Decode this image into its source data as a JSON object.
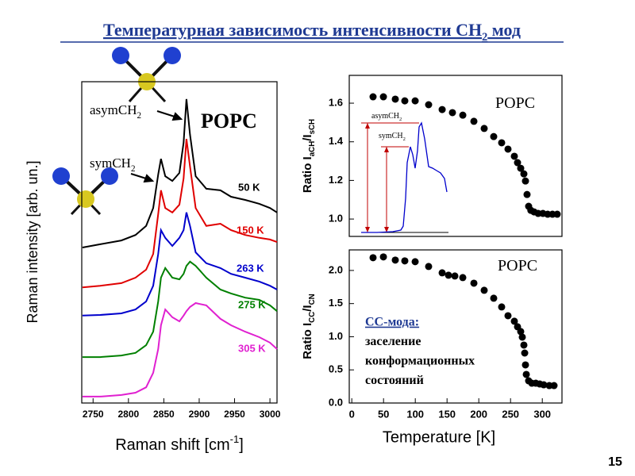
{
  "slide_title": [
    "Температурная зависимость интенсивности CH",
    "2",
    " мод"
  ],
  "page_number": 15,
  "chart_data": [
    {
      "type": "line",
      "xlabel": [
        "Raman shift [cm",
        "-1",
        "]"
      ],
      "ylabel": "Raman intensity [arb. un.]",
      "annotations": [
        [
          "asymCH",
          "2"
        ],
        [
          "symCH",
          "2"
        ],
        [
          "POPC"
        ]
      ],
      "xlim": [
        2734,
        3010
      ],
      "xticks": [
        2750,
        2800,
        2850,
        2900,
        2950,
        3000
      ],
      "ylim": [
        0,
        100
      ],
      "x": [
        2735,
        2760,
        2790,
        2810,
        2825,
        2835,
        2842,
        2846,
        2852,
        2862,
        2872,
        2878,
        2882,
        2887,
        2895,
        2910,
        2930,
        2945,
        2965,
        2985,
        3000,
        3010
      ],
      "series": [
        {
          "name": "50 K",
          "color": "#000000",
          "values": [
            48.4,
            49.4,
            50.6,
            52.3,
            55.1,
            60.7,
            71.1,
            76.0,
            70.6,
            69.1,
            71.6,
            81.0,
            94.6,
            83.5,
            70.6,
            66.7,
            66.2,
            64.2,
            63.2,
            62.0,
            60.7,
            59.3
          ]
        },
        {
          "name": "150 K",
          "color": "#e00000",
          "values": [
            36.0,
            36.5,
            37.3,
            39.0,
            41.5,
            46.4,
            58.8,
            66.2,
            60.7,
            59.3,
            61.7,
            69.9,
            82.2,
            73.6,
            60.7,
            55.1,
            55.8,
            53.8,
            52.3,
            51.4,
            50.9,
            50.1
          ]
        },
        {
          "name": "263 K",
          "color": "#0000cc",
          "values": [
            27.2,
            27.4,
            27.9,
            29.1,
            31.6,
            36.5,
            46.4,
            53.8,
            51.4,
            48.9,
            51.4,
            53.8,
            59.3,
            55.1,
            46.9,
            43.5,
            42.0,
            40.2,
            39.0,
            37.8,
            36.5,
            35.3
          ]
        },
        {
          "name": "275 K",
          "color": "#008000",
          "values": [
            14.3,
            14.3,
            14.8,
            15.6,
            18.0,
            22.2,
            31.6,
            39.0,
            42.0,
            39.0,
            38.5,
            40.2,
            42.7,
            44.0,
            42.7,
            39.0,
            35.3,
            34.1,
            32.8,
            32.1,
            30.4,
            28.6
          ]
        },
        {
          "name": "305 K",
          "color": "#e020d0",
          "values": [
            2.0,
            2.0,
            2.5,
            3.2,
            4.9,
            9.4,
            16.8,
            24.2,
            29.1,
            26.7,
            25.4,
            27.2,
            28.6,
            29.9,
            31.1,
            30.4,
            26.2,
            24.2,
            22.2,
            20.5,
            18.8,
            16.8
          ]
        }
      ]
    },
    {
      "type": "scatter",
      "ylabel": [
        "Ratio I",
        "aCH",
        "/I",
        "sCH"
      ],
      "annotations": [
        [
          "POPC"
        ]
      ],
      "color": "#000000",
      "xlim": [
        -4,
        331
      ],
      "ylim": [
        0.91,
        1.744
      ],
      "yticks": [
        {
          "value": 1,
          "label": "1.0"
        },
        1.2,
        1.4,
        1.6
      ],
      "x": [
        33.5,
        49.8,
        68.5,
        83.5,
        99.8,
        121,
        142.3,
        158.5,
        174.8,
        192.3,
        208.5,
        223.5,
        236,
        246,
        256,
        261,
        266,
        271,
        273.5,
        276,
        278.5,
        282,
        287,
        293.5,
        301,
        308.5,
        316,
        323.5
      ],
      "values": [
        1.633,
        1.633,
        1.621,
        1.612,
        1.612,
        1.592,
        1.567,
        1.551,
        1.538,
        1.506,
        1.469,
        1.427,
        1.395,
        1.362,
        1.325,
        1.292,
        1.263,
        1.234,
        1.197,
        1.127,
        1.066,
        1.045,
        1.037,
        1.029,
        1.029,
        1.025,
        1.025,
        1.025
      ],
      "inset": {
        "annotations": [
          [
            "asymCH",
            "2"
          ],
          [
            "symCH",
            "2"
          ]
        ],
        "color": "#0000cc",
        "x": [
          0,
          20,
          40,
          50,
          53,
          56,
          58,
          62,
          65,
          68,
          71,
          73,
          76,
          80,
          85,
          90,
          95,
          100,
          105,
          108
        ],
        "values": [
          2,
          2,
          3,
          5,
          10,
          45,
          90,
          110,
          100,
          83,
          105,
          135,
          140,
          120,
          85,
          83,
          80,
          77,
          70,
          53
        ]
      }
    },
    {
      "type": "scatter",
      "xlabel": "Temperature [K]",
      "ylabel": [
        "Ratio I",
        "CC",
        "/I",
        "CN"
      ],
      "annotations": [
        [
          "POPC"
        ]
      ],
      "note": [
        "CC-мода:",
        "заселение",
        "конформационных",
        "состояний"
      ],
      "color": "#000000",
      "xlim": [
        -4,
        331
      ],
      "xticks": [
        0,
        50,
        100,
        150,
        200,
        250,
        300
      ],
      "ylim": [
        0,
        2.31
      ],
      "yticks": [
        {
          "value": 0,
          "label": "0.0"
        },
        0.5,
        {
          "value": 1,
          "label": "1.0"
        },
        1.5,
        {
          "value": 2,
          "label": "2.0"
        }
      ],
      "x": [
        33.5,
        49.8,
        68.5,
        83.5,
        99.8,
        121,
        142.3,
        152.3,
        162.3,
        174.8,
        192.3,
        208.5,
        223.5,
        236,
        246,
        256,
        261,
        266,
        268.5,
        271,
        272.3,
        273.5,
        274.8,
        278.5,
        283.5,
        289.8,
        296,
        302.3,
        311,
        318.5
      ],
      "values": [
        2.192,
        2.204,
        2.156,
        2.144,
        2.132,
        2.06,
        1.964,
        1.928,
        1.916,
        1.892,
        1.808,
        1.701,
        1.581,
        1.449,
        1.317,
        1.234,
        1.15,
        1.078,
        0.994,
        0.874,
        0.754,
        0.575,
        0.431,
        0.335,
        0.299,
        0.299,
        0.287,
        0.275,
        0.263,
        0.263
      ]
    }
  ]
}
